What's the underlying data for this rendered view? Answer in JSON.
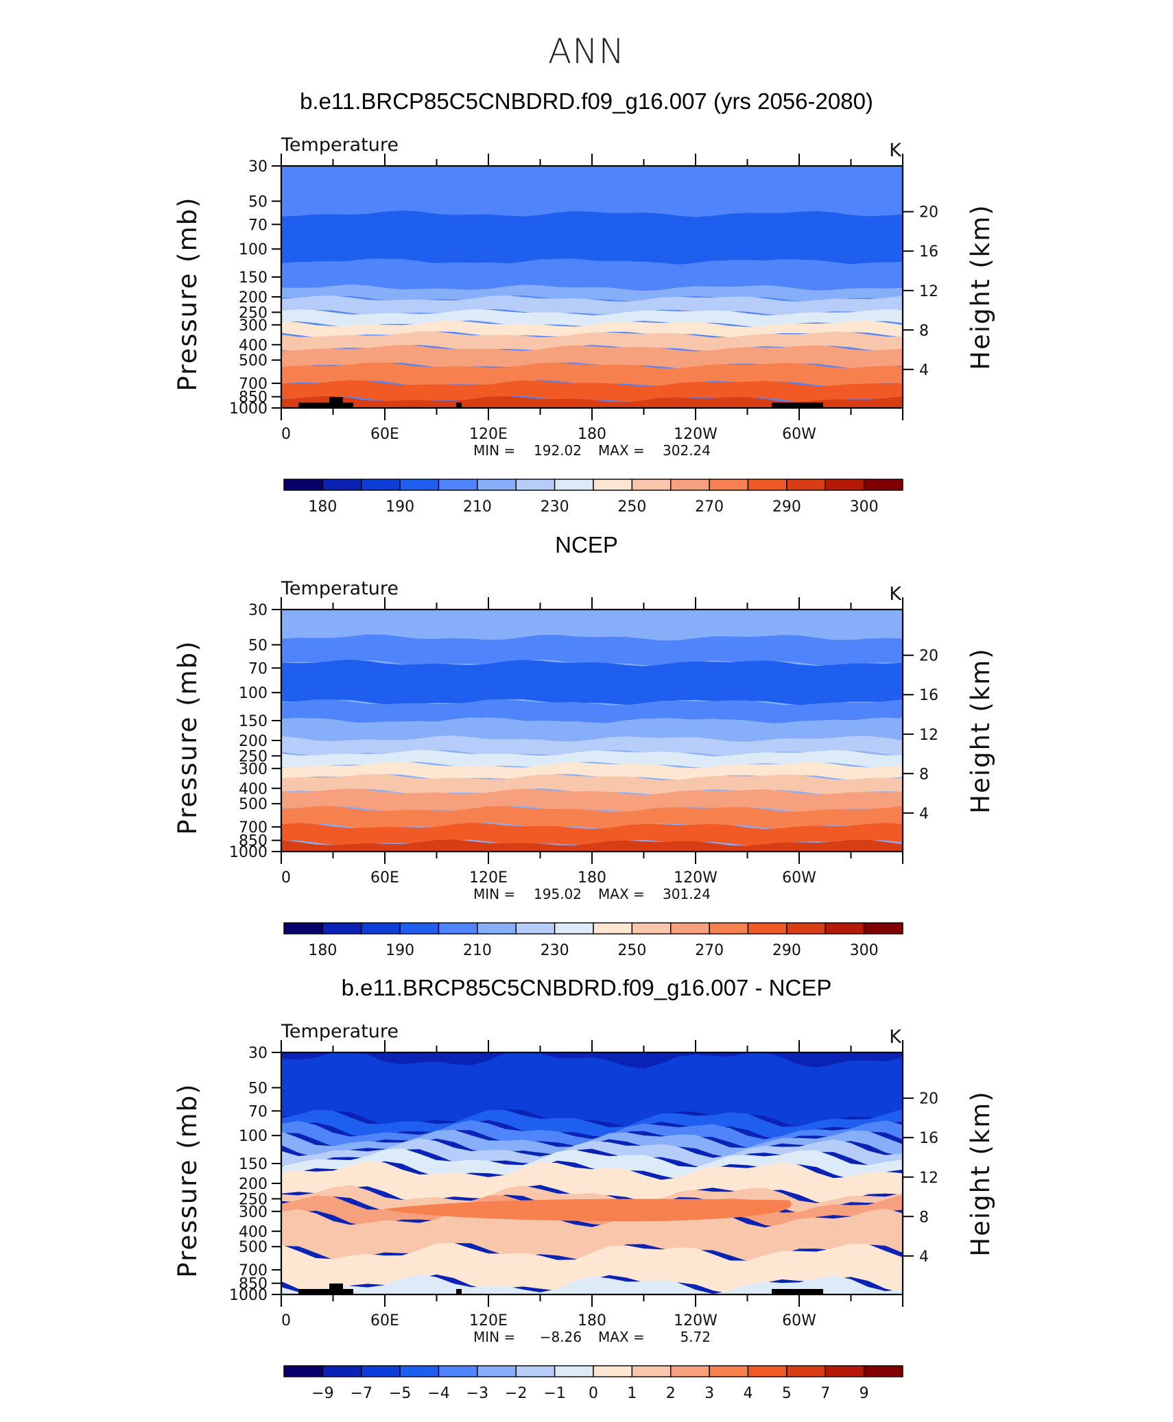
{
  "page": {
    "title": "ANN"
  },
  "palette": [
    "#08006b",
    "#0a23b5",
    "#0d3fd8",
    "#1f5ff0",
    "#4f84fa",
    "#87aef9",
    "#b7cdf9",
    "#ddebf9",
    "#fde7d3",
    "#f8c7ab",
    "#f7a07d",
    "#f6804e",
    "#f25a25",
    "#d83d13",
    "#b51a08",
    "#800000"
  ],
  "chart_data": [
    {
      "type": "heatmap",
      "subtitle": "b.e11.BRCP85C5CNBDRD.f09_g16.007 (yrs 2056-2080)",
      "variable": "Temperature",
      "units": "K",
      "xlabel": "",
      "ylabel": "Pressure (mb)",
      "y2label": "Height (km)",
      "x_tick_labels": [
        "0",
        "60E",
        "120E",
        "180",
        "120W",
        "60W"
      ],
      "y_tick_labels": [
        "30",
        "50",
        "70",
        "100",
        "150",
        "200",
        "250",
        "300",
        "400",
        "500",
        "700",
        "850",
        "1000"
      ],
      "y2_tick_labels": [
        "20",
        "16",
        "12",
        "8",
        "4"
      ],
      "stats": {
        "min_label": "MIN =",
        "min": "192.02",
        "max_label": "MAX =",
        "max": "302.24"
      },
      "colorbar_labels": [
        "180",
        "190",
        "210",
        "230",
        "250",
        "270",
        "290",
        "300"
      ],
      "bands": [
        {
          "from": 30,
          "to": 60,
          "color_index": 4
        },
        {
          "from": 60,
          "to": 120,
          "color_index": 3
        },
        {
          "from": 120,
          "to": 175,
          "color_index": 4
        },
        {
          "from": 175,
          "to": 205,
          "color_index": 5
        },
        {
          "from": 205,
          "to": 250,
          "color_index": 6
        },
        {
          "from": 250,
          "to": 295,
          "color_index": 7
        },
        {
          "from": 295,
          "to": 345,
          "color_index": 8
        },
        {
          "from": 345,
          "to": 420,
          "color_index": 9
        },
        {
          "from": 420,
          "to": 540,
          "color_index": 10
        },
        {
          "from": 540,
          "to": 700,
          "color_index": 11
        },
        {
          "from": 700,
          "to": 880,
          "color_index": 12
        },
        {
          "from": 880,
          "to": 1000,
          "color_index": 13
        }
      ],
      "topography": true
    },
    {
      "type": "heatmap",
      "subtitle": "NCEP",
      "variable": "Temperature",
      "units": "K",
      "xlabel": "",
      "ylabel": "Pressure (mb)",
      "y2label": "Height (km)",
      "x_tick_labels": [
        "0",
        "60E",
        "120E",
        "180",
        "120W",
        "60W"
      ],
      "y_tick_labels": [
        "30",
        "50",
        "70",
        "100",
        "150",
        "200",
        "250",
        "300",
        "400",
        "500",
        "700",
        "850",
        "1000"
      ],
      "y2_tick_labels": [
        "20",
        "16",
        "12",
        "8",
        "4"
      ],
      "stats": {
        "min_label": "MIN =",
        "min": "195.02",
        "max_label": "MAX =",
        "max": "301.24"
      },
      "colorbar_labels": [
        "180",
        "190",
        "210",
        "230",
        "250",
        "270",
        "290",
        "300"
      ],
      "bands": [
        {
          "from": 30,
          "to": 45,
          "color_index": 5
        },
        {
          "from": 45,
          "to": 65,
          "color_index": 4
        },
        {
          "from": 65,
          "to": 115,
          "color_index": 3
        },
        {
          "from": 115,
          "to": 150,
          "color_index": 4
        },
        {
          "from": 150,
          "to": 195,
          "color_index": 5
        },
        {
          "from": 195,
          "to": 240,
          "color_index": 6
        },
        {
          "from": 240,
          "to": 285,
          "color_index": 7
        },
        {
          "from": 285,
          "to": 340,
          "color_index": 8
        },
        {
          "from": 340,
          "to": 420,
          "color_index": 9
        },
        {
          "from": 420,
          "to": 540,
          "color_index": 10
        },
        {
          "from": 540,
          "to": 690,
          "color_index": 11
        },
        {
          "from": 690,
          "to": 880,
          "color_index": 12
        },
        {
          "from": 880,
          "to": 1000,
          "color_index": 13
        }
      ],
      "topography": false
    },
    {
      "type": "heatmap",
      "subtitle": "b.e11.BRCP85C5CNBDRD.f09_g16.007 - NCEP",
      "variable": "Temperature",
      "units": "K",
      "xlabel": "",
      "ylabel": "Pressure (mb)",
      "y2label": "Height (km)",
      "x_tick_labels": [
        "0",
        "60E",
        "120E",
        "180",
        "120W",
        "60W"
      ],
      "y_tick_labels": [
        "30",
        "50",
        "70",
        "100",
        "150",
        "200",
        "250",
        "300",
        "400",
        "500",
        "700",
        "850",
        "1000"
      ],
      "y2_tick_labels": [
        "20",
        "16",
        "12",
        "8",
        "4"
      ],
      "stats": {
        "min_label": "MIN =",
        "min": "−8.26",
        "max_label": "MAX =",
        "max": "5.72"
      },
      "colorbar_labels": [
        "−9",
        "−7",
        "−5",
        "−4",
        "−3",
        "−2",
        "−1",
        "0",
        "1",
        "2",
        "3",
        "4",
        "5",
        "7",
        "9"
      ],
      "bands": [
        {
          "from": 30,
          "to": 33,
          "color_index": 1
        },
        {
          "from": 33,
          "to": 78,
          "color_index": 2
        },
        {
          "from": 78,
          "to": 92,
          "color_index": 3
        },
        {
          "from": 92,
          "to": 105,
          "color_index": 4
        },
        {
          "from": 105,
          "to": 120,
          "color_index": 5
        },
        {
          "from": 120,
          "to": 138,
          "color_index": 6
        },
        {
          "from": 138,
          "to": 165,
          "color_index": 7
        },
        {
          "from": 165,
          "to": 235,
          "color_index": 8
        },
        {
          "from": 235,
          "to": 270,
          "color_index": 9
        },
        {
          "from": 270,
          "to": 330,
          "color_index": 10
        },
        {
          "from": 330,
          "to": 540,
          "color_index": 9
        },
        {
          "from": 540,
          "to": 860,
          "color_index": 8
        },
        {
          "from": 860,
          "to": 1000,
          "color_index": 7
        }
      ],
      "topography": true
    }
  ]
}
